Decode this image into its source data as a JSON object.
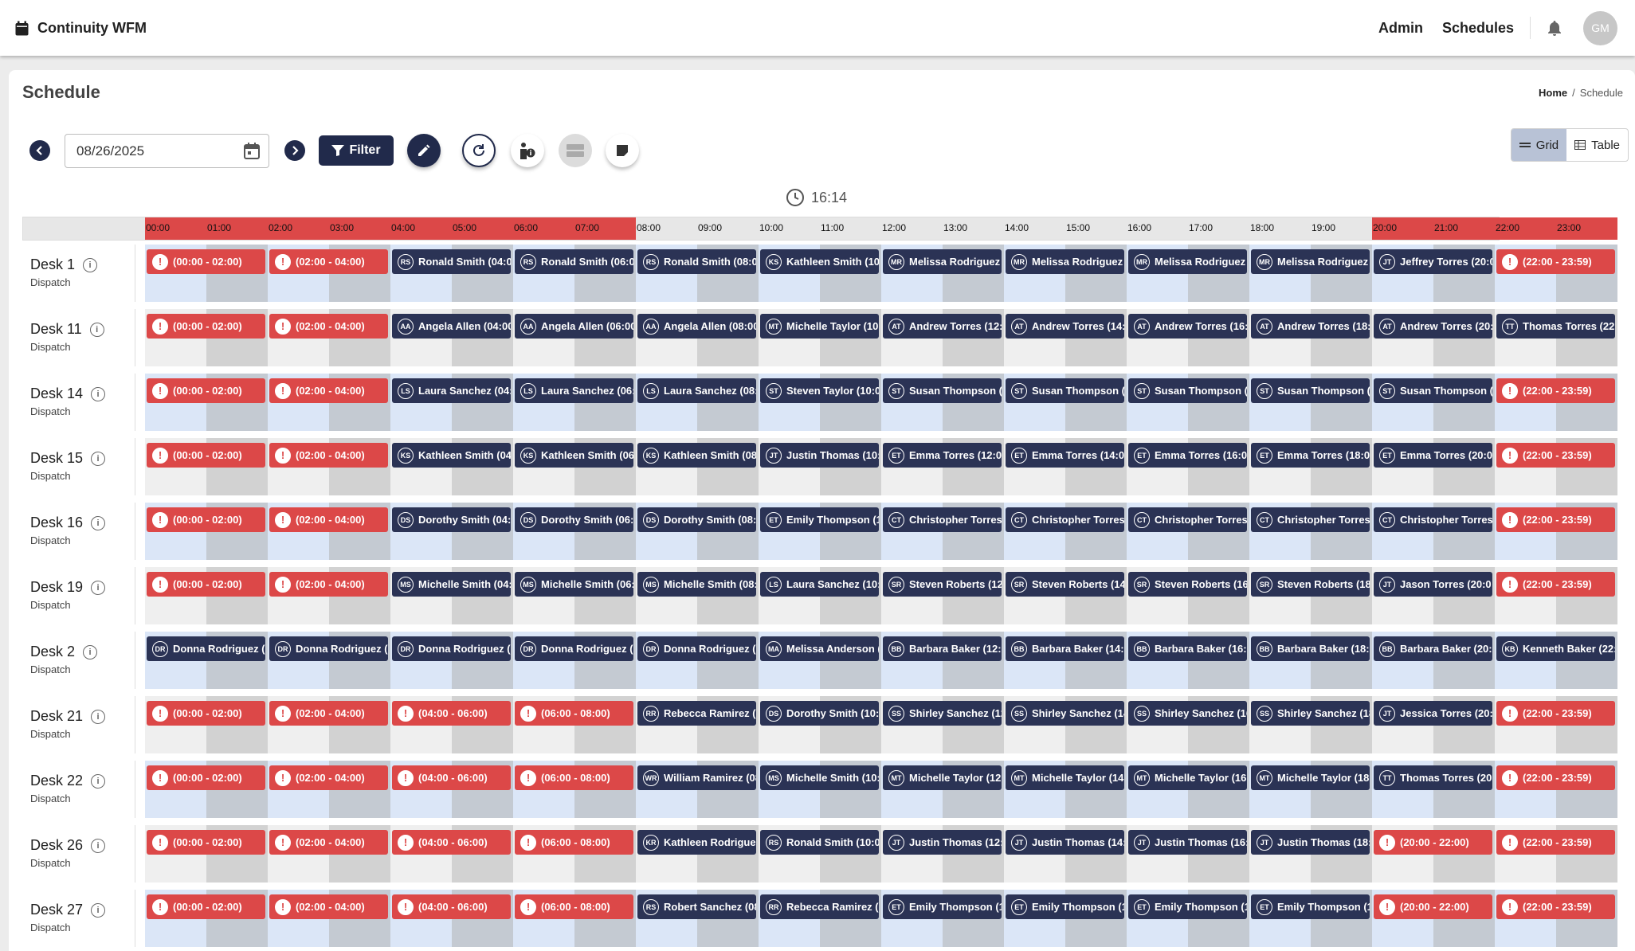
{
  "app": {
    "title": "Continuity WFM",
    "nav": [
      "Admin",
      "Schedules"
    ],
    "avatar": "GM"
  },
  "page": {
    "title": "Schedule",
    "breadcrumb": {
      "home": "Home",
      "sep": "/",
      "current": "Schedule"
    }
  },
  "toolbar": {
    "date": "08/26/2025",
    "filter_label": "Filter",
    "views": [
      "Grid",
      "Table"
    ],
    "active_view": "Grid"
  },
  "clock": "16:14",
  "hours": [
    "00:00",
    "01:00",
    "02:00",
    "03:00",
    "04:00",
    "05:00",
    "06:00",
    "07:00",
    "08:00",
    "09:00",
    "10:00",
    "11:00",
    "12:00",
    "13:00",
    "14:00",
    "15:00",
    "16:00",
    "17:00",
    "18:00",
    "19:00",
    "20:00",
    "21:00",
    "22:00",
    "23:00"
  ],
  "colors": {
    "vacant": "#dc4848",
    "assigned": "#2b3355",
    "night": "#dc4848",
    "primary": "#212a4b"
  },
  "rows": [
    {
      "name": "Desk 1",
      "sub": "Dispatch",
      "shifts": [
        [
          "!",
          "(00:00 - 02:00)"
        ],
        [
          "!",
          "(02:00 - 04:00)"
        ],
        [
          "RS",
          "Ronald Smith (04:0"
        ],
        [
          "RS",
          "Ronald Smith (06:0"
        ],
        [
          "RS",
          "Ronald Smith (08:0"
        ],
        [
          "KS",
          "Kathleen Smith (10"
        ],
        [
          "MR",
          "Melissa Rodriguez"
        ],
        [
          "MR",
          "Melissa Rodriguez"
        ],
        [
          "MR",
          "Melissa Rodriguez"
        ],
        [
          "MR",
          "Melissa Rodriguez"
        ],
        [
          "JT",
          "Jeffrey Torres (20:0"
        ],
        [
          "!",
          "(22:00 - 23:59)"
        ]
      ]
    },
    {
      "name": "Desk 11",
      "sub": "Dispatch",
      "shifts": [
        [
          "!",
          "(00:00 - 02:00)"
        ],
        [
          "!",
          "(02:00 - 04:00)"
        ],
        [
          "AA",
          "Angela Allen (04:00"
        ],
        [
          "AA",
          "Angela Allen (06:00"
        ],
        [
          "AA",
          "Angela Allen (08:00"
        ],
        [
          "MT",
          "Michelle Taylor (10:"
        ],
        [
          "AT",
          "Andrew Torres (12:"
        ],
        [
          "AT",
          "Andrew Torres (14:"
        ],
        [
          "AT",
          "Andrew Torres (16:"
        ],
        [
          "AT",
          "Andrew Torres (18:"
        ],
        [
          "AT",
          "Andrew Torres (20:"
        ],
        [
          "TT",
          "Thomas Torres (22:"
        ]
      ]
    },
    {
      "name": "Desk 14",
      "sub": "Dispatch",
      "shifts": [
        [
          "!",
          "(00:00 - 02:00)"
        ],
        [
          "!",
          "(02:00 - 04:00)"
        ],
        [
          "LS",
          "Laura Sanchez (04:"
        ],
        [
          "LS",
          "Laura Sanchez (06:"
        ],
        [
          "LS",
          "Laura Sanchez (08:"
        ],
        [
          "ST",
          "Steven Taylor (10:0"
        ],
        [
          "ST",
          "Susan Thompson (1"
        ],
        [
          "ST",
          "Susan Thompson (1"
        ],
        [
          "ST",
          "Susan Thompson (1"
        ],
        [
          "ST",
          "Susan Thompson (1"
        ],
        [
          "ST",
          "Susan Thompson (2"
        ],
        [
          "!",
          "(22:00 - 23:59)"
        ]
      ]
    },
    {
      "name": "Desk 15",
      "sub": "Dispatch",
      "shifts": [
        [
          "!",
          "(00:00 - 02:00)"
        ],
        [
          "!",
          "(02:00 - 04:00)"
        ],
        [
          "KS",
          "Kathleen Smith (04"
        ],
        [
          "KS",
          "Kathleen Smith (06"
        ],
        [
          "KS",
          "Kathleen Smith (08"
        ],
        [
          "JT",
          "Justin Thomas (10:"
        ],
        [
          "ET",
          "Emma Torres (12:0"
        ],
        [
          "ET",
          "Emma Torres (14:0"
        ],
        [
          "ET",
          "Emma Torres (16:0"
        ],
        [
          "ET",
          "Emma Torres (18:0"
        ],
        [
          "ET",
          "Emma Torres (20:0"
        ],
        [
          "!",
          "(22:00 - 23:59)"
        ]
      ]
    },
    {
      "name": "Desk 16",
      "sub": "Dispatch",
      "shifts": [
        [
          "!",
          "(00:00 - 02:00)"
        ],
        [
          "!",
          "(02:00 - 04:00)"
        ],
        [
          "DS",
          "Dorothy Smith (04:"
        ],
        [
          "DS",
          "Dorothy Smith (06:0"
        ],
        [
          "DS",
          "Dorothy Smith (08:0"
        ],
        [
          "ET",
          "Emily Thompson (1"
        ],
        [
          "CT",
          "Christopher Torres"
        ],
        [
          "CT",
          "Christopher Torres"
        ],
        [
          "CT",
          "Christopher Torres"
        ],
        [
          "CT",
          "Christopher Torres"
        ],
        [
          "CT",
          "Christopher Torres"
        ],
        [
          "!",
          "(22:00 - 23:59)"
        ]
      ]
    },
    {
      "name": "Desk 19",
      "sub": "Dispatch",
      "shifts": [
        [
          "!",
          "(00:00 - 02:00)"
        ],
        [
          "!",
          "(02:00 - 04:00)"
        ],
        [
          "MS",
          "Michelle Smith (04:"
        ],
        [
          "MS",
          "Michelle Smith (06:"
        ],
        [
          "MS",
          "Michelle Smith (08:"
        ],
        [
          "LS",
          "Laura Sanchez (10:"
        ],
        [
          "SR",
          "Steven Roberts (12"
        ],
        [
          "SR",
          "Steven Roberts (14"
        ],
        [
          "SR",
          "Steven Roberts (16"
        ],
        [
          "SR",
          "Steven Roberts (18"
        ],
        [
          "JT",
          "Jason Torres (20:0"
        ],
        [
          "!",
          "(22:00 - 23:59)"
        ]
      ]
    },
    {
      "name": "Desk 2",
      "sub": "Dispatch",
      "shifts": [
        [
          "DR",
          "Donna Rodriguez (0"
        ],
        [
          "DR",
          "Donna Rodriguez (0"
        ],
        [
          "DR",
          "Donna Rodriguez (0"
        ],
        [
          "DR",
          "Donna Rodriguez (0"
        ],
        [
          "DR",
          "Donna Rodriguez (0"
        ],
        [
          "MA",
          "Melissa Anderson ("
        ],
        [
          "BB",
          "Barbara Baker (12:0"
        ],
        [
          "BB",
          "Barbara Baker (14:0"
        ],
        [
          "BB",
          "Barbara Baker (16:0"
        ],
        [
          "BB",
          "Barbara Baker (18:0"
        ],
        [
          "BB",
          "Barbara Baker (20:0"
        ],
        [
          "KB",
          "Kenneth Baker (22:"
        ]
      ]
    },
    {
      "name": "Desk 21",
      "sub": "Dispatch",
      "shifts": [
        [
          "!",
          "(00:00 - 02:00)"
        ],
        [
          "!",
          "(02:00 - 04:00)"
        ],
        [
          "!",
          "(04:00 - 06:00)"
        ],
        [
          "!",
          "(06:00 - 08:00)"
        ],
        [
          "RR",
          "Rebecca Ramirez (("
        ],
        [
          "DS",
          "Dorothy Smith (10:0"
        ],
        [
          "SS",
          "Shirley Sanchez (12"
        ],
        [
          "SS",
          "Shirley Sanchez (14"
        ],
        [
          "SS",
          "Shirley Sanchez (16"
        ],
        [
          "SS",
          "Shirley Sanchez (18"
        ],
        [
          "JT",
          "Jessica Torres (20:"
        ],
        [
          "!",
          "(22:00 - 23:59)"
        ]
      ]
    },
    {
      "name": "Desk 22",
      "sub": "Dispatch",
      "shifts": [
        [
          "!",
          "(00:00 - 02:00)"
        ],
        [
          "!",
          "(02:00 - 04:00)"
        ],
        [
          "!",
          "(04:00 - 06:00)"
        ],
        [
          "!",
          "(06:00 - 08:00)"
        ],
        [
          "WR",
          "William Ramirez (08"
        ],
        [
          "MS",
          "Michelle Smith (10:"
        ],
        [
          "MT",
          "Michelle Taylor (12:"
        ],
        [
          "MT",
          "Michelle Taylor (14:"
        ],
        [
          "MT",
          "Michelle Taylor (16:"
        ],
        [
          "MT",
          "Michelle Taylor (18:"
        ],
        [
          "TT",
          "Thomas Torres (20:"
        ],
        [
          "!",
          "(22:00 - 23:59)"
        ]
      ]
    },
    {
      "name": "Desk 26",
      "sub": "Dispatch",
      "shifts": [
        [
          "!",
          "(00:00 - 02:00)"
        ],
        [
          "!",
          "(02:00 - 04:00)"
        ],
        [
          "!",
          "(04:00 - 06:00)"
        ],
        [
          "!",
          "(06:00 - 08:00)"
        ],
        [
          "KR",
          "Kathleen Rodriguez"
        ],
        [
          "RS",
          "Ronald Smith (10:0"
        ],
        [
          "JT",
          "Justin Thomas (12:"
        ],
        [
          "JT",
          "Justin Thomas (14:"
        ],
        [
          "JT",
          "Justin Thomas (16:"
        ],
        [
          "JT",
          "Justin Thomas (18:"
        ],
        [
          "!",
          "(20:00 - 22:00)"
        ],
        [
          "!",
          "(22:00 - 23:59)"
        ]
      ]
    },
    {
      "name": "Desk 27",
      "sub": "Dispatch",
      "shifts": [
        [
          "!",
          "(00:00 - 02:00)"
        ],
        [
          "!",
          "(02:00 - 04:00)"
        ],
        [
          "!",
          "(04:00 - 06:00)"
        ],
        [
          "!",
          "(06:00 - 08:00)"
        ],
        [
          "RS",
          "Robert Sanchez (08"
        ],
        [
          "RR",
          "Rebecca Ramirez (1"
        ],
        [
          "ET",
          "Emily Thompson (1"
        ],
        [
          "ET",
          "Emily Thompson (1"
        ],
        [
          "ET",
          "Emily Thompson (1"
        ],
        [
          "ET",
          "Emily Thompson (1"
        ],
        [
          "!",
          "(20:00 - 22:00)"
        ],
        [
          "!",
          "(22:00 - 23:59)"
        ]
      ]
    }
  ]
}
